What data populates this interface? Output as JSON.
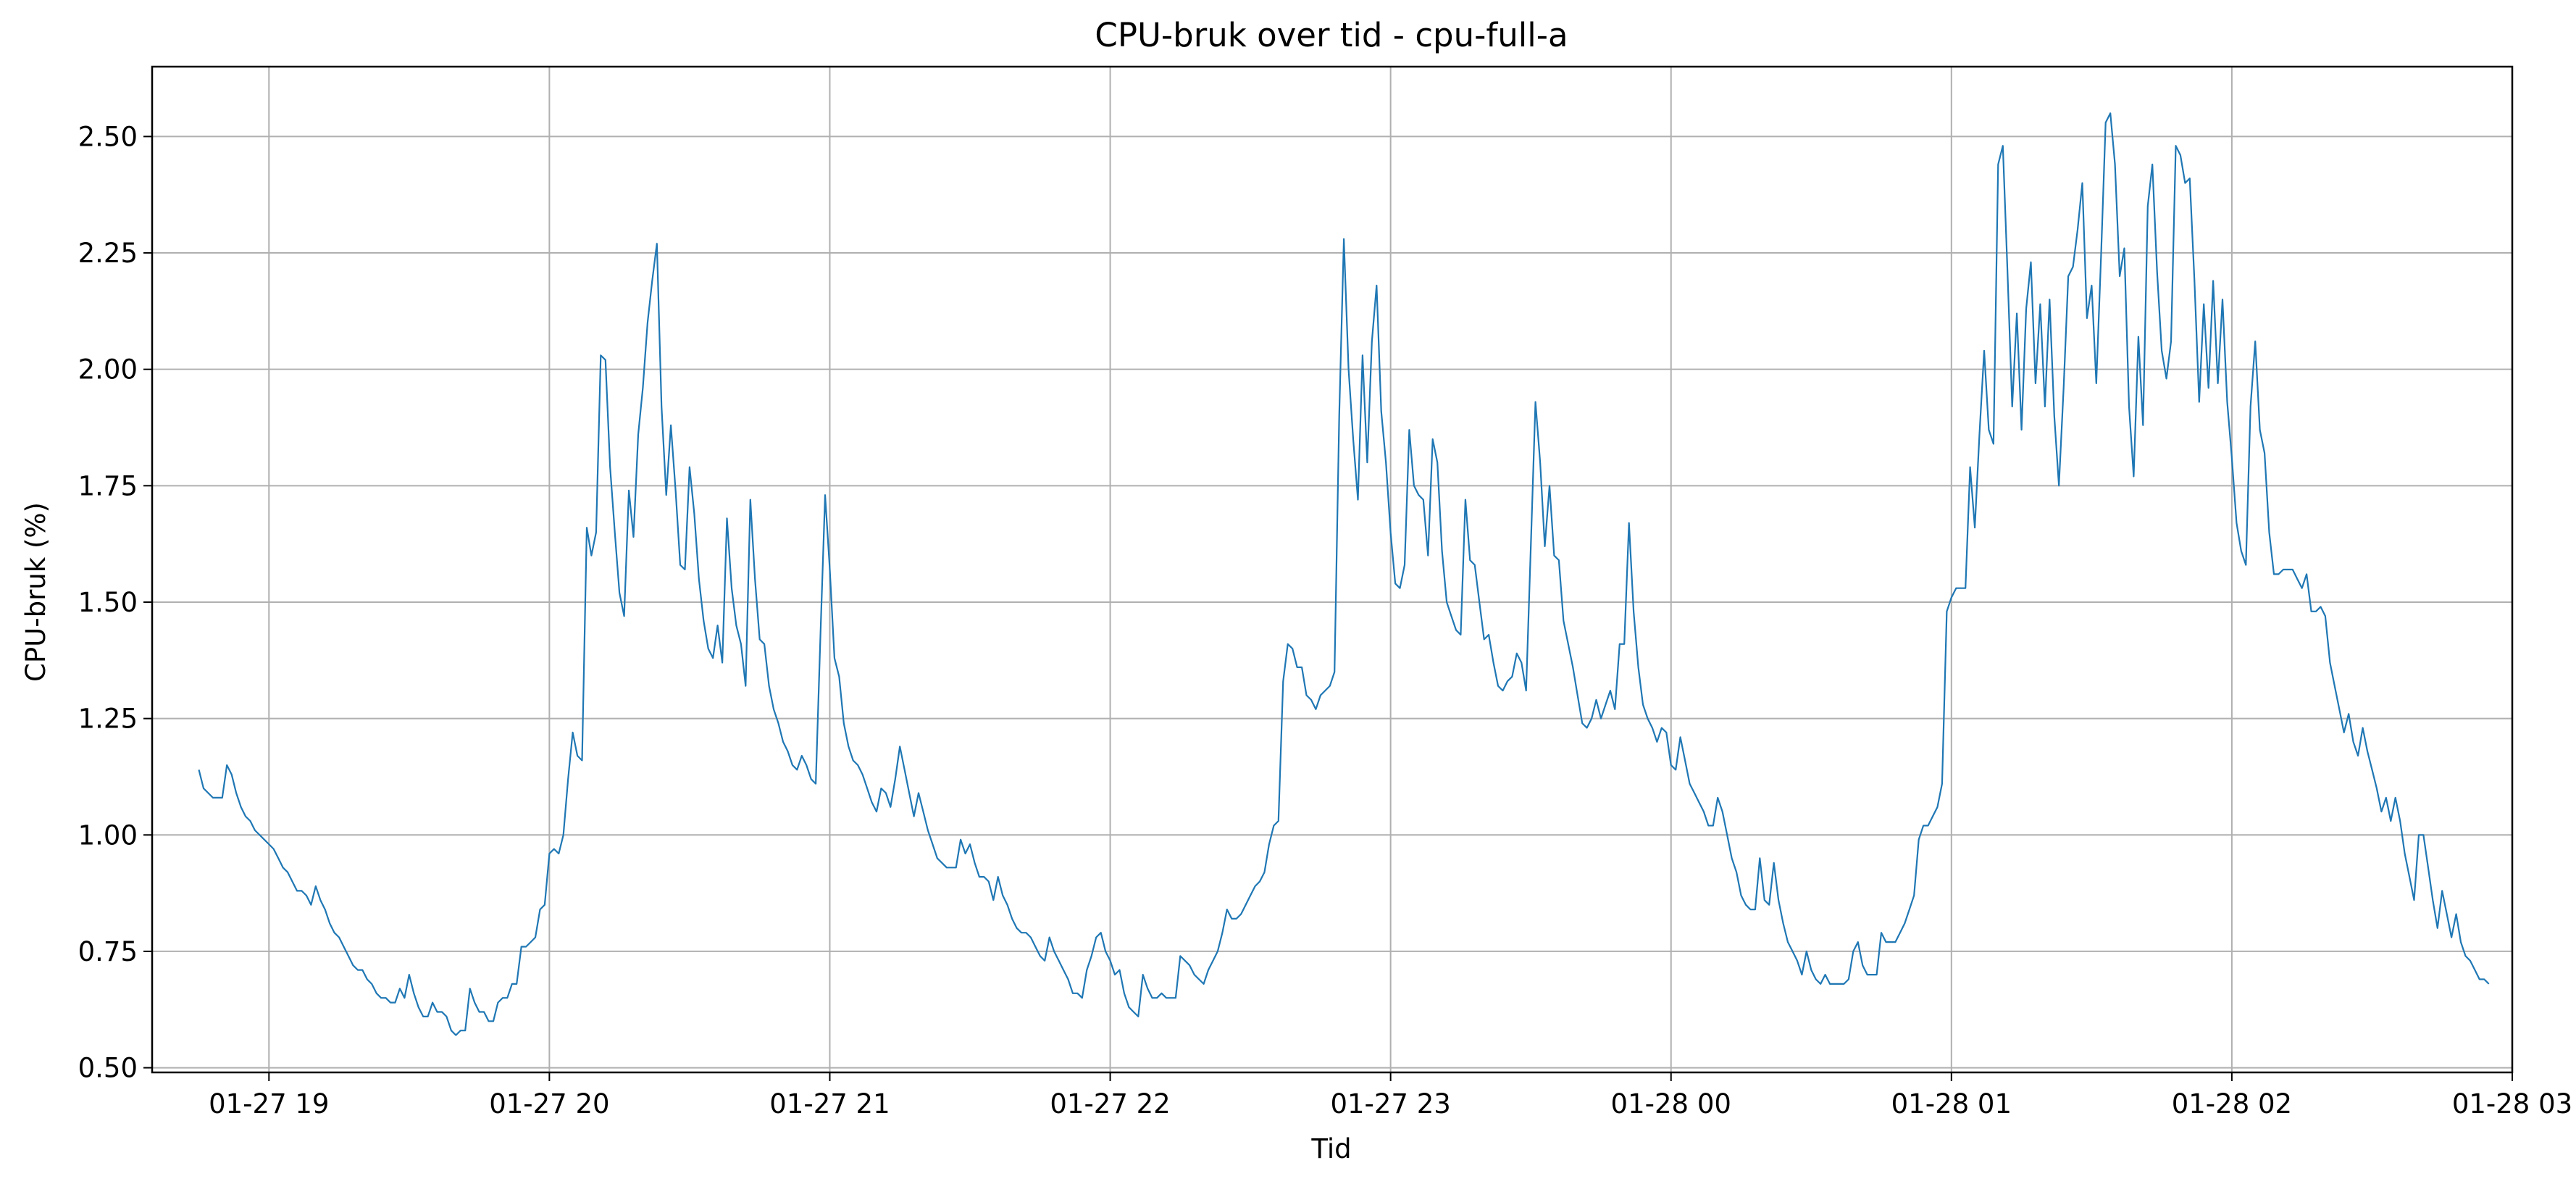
{
  "chart_data": {
    "type": "line",
    "title": "CPU-bruk over tid - cpu-full-a",
    "xlabel": "Tid",
    "ylabel": "CPU-bruk (%)",
    "xlim": [
      "2026-01-27 18:35",
      "2026-01-28 03:00"
    ],
    "ylim": [
      0.49,
      2.65
    ],
    "grid": true,
    "series_color": "#1f77b4",
    "x_ticks": [
      "01-27 19",
      "01-27 20",
      "01-27 21",
      "01-27 22",
      "01-27 23",
      "01-28 00",
      "01-28 01",
      "01-28 02",
      "01-28 03"
    ],
    "y_ticks": [
      "0.50",
      "0.75",
      "1.00",
      "1.25",
      "1.50",
      "1.75",
      "2.00",
      "2.25",
      "2.50"
    ],
    "x_start": "2026-01-27 18:45",
    "x_step_minutes": 1,
    "series": [
      {
        "values": [
          1.14,
          1.1,
          1.09,
          1.08,
          1.08,
          1.08,
          1.15,
          1.13,
          1.09,
          1.06,
          1.04,
          1.03,
          1.01,
          1.0,
          0.99,
          0.98,
          0.97,
          0.95,
          0.93,
          0.92,
          0.9,
          0.88,
          0.88,
          0.87,
          0.85,
          0.89,
          0.86,
          0.84,
          0.81,
          0.79,
          0.78,
          0.76,
          0.74,
          0.72,
          0.71,
          0.71,
          0.69,
          0.68,
          0.66,
          0.65,
          0.65,
          0.64,
          0.64,
          0.67,
          0.65,
          0.7,
          0.66,
          0.63,
          0.61,
          0.61,
          0.64,
          0.62,
          0.62,
          0.61,
          0.58,
          0.57,
          0.58,
          0.58,
          0.67,
          0.64,
          0.62,
          0.62,
          0.6,
          0.6,
          0.64,
          0.65,
          0.65,
          0.68,
          0.68,
          0.76,
          0.76,
          0.77,
          0.78,
          0.84,
          0.85,
          0.96,
          0.97,
          0.96,
          1.0,
          1.12,
          1.22,
          1.17,
          1.16,
          1.66,
          1.6,
          1.65,
          2.03,
          2.02,
          1.79,
          1.65,
          1.52,
          1.47,
          1.74,
          1.64,
          1.86,
          1.96,
          2.1,
          2.19,
          2.27,
          1.92,
          1.73,
          1.88,
          1.74,
          1.58,
          1.57,
          1.79,
          1.69,
          1.55,
          1.46,
          1.4,
          1.38,
          1.45,
          1.37,
          1.68,
          1.53,
          1.45,
          1.41,
          1.32,
          1.72,
          1.55,
          1.42,
          1.41,
          1.32,
          1.27,
          1.24,
          1.2,
          1.18,
          1.15,
          1.14,
          1.17,
          1.15,
          1.12,
          1.11,
          1.43,
          1.73,
          1.57,
          1.38,
          1.34,
          1.24,
          1.19,
          1.16,
          1.15,
          1.13,
          1.1,
          1.07,
          1.05,
          1.1,
          1.09,
          1.06,
          1.12,
          1.19,
          1.14,
          1.09,
          1.04,
          1.09,
          1.05,
          1.01,
          0.98,
          0.95,
          0.94,
          0.93,
          0.93,
          0.93,
          0.99,
          0.96,
          0.98,
          0.94,
          0.91,
          0.91,
          0.9,
          0.86,
          0.91,
          0.87,
          0.85,
          0.82,
          0.8,
          0.79,
          0.79,
          0.78,
          0.76,
          0.74,
          0.73,
          0.78,
          0.75,
          0.73,
          0.71,
          0.69,
          0.66,
          0.66,
          0.65,
          0.71,
          0.74,
          0.78,
          0.79,
          0.75,
          0.73,
          0.7,
          0.71,
          0.66,
          0.63,
          0.62,
          0.61,
          0.7,
          0.67,
          0.65,
          0.65,
          0.66,
          0.65,
          0.65,
          0.65,
          0.74,
          0.73,
          0.72,
          0.7,
          0.69,
          0.68,
          0.71,
          0.73,
          0.75,
          0.79,
          0.84,
          0.82,
          0.82,
          0.83,
          0.85,
          0.87,
          0.89,
          0.9,
          0.92,
          0.98,
          1.02,
          1.03,
          1.33,
          1.41,
          1.4,
          1.36,
          1.36,
          1.3,
          1.29,
          1.27,
          1.3,
          1.31,
          1.32,
          1.35,
          1.9,
          2.28,
          2.0,
          1.85,
          1.72,
          2.03,
          1.8,
          2.06,
          2.18,
          1.91,
          1.8,
          1.65,
          1.54,
          1.53,
          1.58,
          1.87,
          1.75,
          1.73,
          1.72,
          1.6,
          1.85,
          1.8,
          1.61,
          1.5,
          1.47,
          1.44,
          1.43,
          1.72,
          1.59,
          1.58,
          1.5,
          1.42,
          1.43,
          1.37,
          1.32,
          1.31,
          1.33,
          1.34,
          1.39,
          1.37,
          1.31,
          1.62,
          1.93,
          1.8,
          1.62,
          1.75,
          1.6,
          1.59,
          1.46,
          1.41,
          1.36,
          1.3,
          1.24,
          1.23,
          1.25,
          1.29,
          1.25,
          1.28,
          1.31,
          1.27,
          1.41,
          1.41,
          1.67,
          1.48,
          1.36,
          1.28,
          1.25,
          1.23,
          1.2,
          1.23,
          1.22,
          1.15,
          1.14,
          1.21,
          1.16,
          1.11,
          1.09,
          1.07,
          1.05,
          1.02,
          1.02,
          1.08,
          1.05,
          1.0,
          0.95,
          0.92,
          0.87,
          0.85,
          0.84,
          0.84,
          0.95,
          0.86,
          0.85,
          0.94,
          0.86,
          0.81,
          0.77,
          0.75,
          0.73,
          0.7,
          0.75,
          0.71,
          0.69,
          0.68,
          0.7,
          0.68,
          0.68,
          0.68,
          0.68,
          0.69,
          0.75,
          0.77,
          0.72,
          0.7,
          0.7,
          0.7,
          0.79,
          0.77,
          0.77,
          0.77,
          0.79,
          0.81,
          0.84,
          0.87,
          0.99,
          1.02,
          1.02,
          1.04,
          1.06,
          1.11,
          1.48,
          1.51,
          1.53,
          1.53,
          1.53,
          1.79,
          1.66,
          1.86,
          2.04,
          1.87,
          1.84,
          2.44,
          2.48,
          2.21,
          1.92,
          2.12,
          1.87,
          2.13,
          2.23,
          1.97,
          2.14,
          1.92,
          2.15,
          1.9,
          1.75,
          1.96,
          2.2,
          2.22,
          2.3,
          2.4,
          2.11,
          2.18,
          1.97,
          2.24,
          2.53,
          2.55,
          2.44,
          2.2,
          2.26,
          1.92,
          1.77,
          2.07,
          1.88,
          2.35,
          2.44,
          2.21,
          2.04,
          1.98,
          2.06,
          2.48,
          2.46,
          2.4,
          2.41,
          2.19,
          1.93,
          2.14,
          1.96,
          2.19,
          1.97,
          2.15,
          1.93,
          1.81,
          1.67,
          1.61,
          1.58,
          1.92,
          2.06,
          1.87,
          1.82,
          1.65,
          1.56,
          1.56,
          1.57,
          1.57,
          1.57,
          1.55,
          1.53,
          1.56,
          1.48,
          1.48,
          1.49,
          1.47,
          1.37,
          1.32,
          1.27,
          1.22,
          1.26,
          1.2,
          1.17,
          1.23,
          1.18,
          1.14,
          1.1,
          1.05,
          1.08,
          1.03,
          1.08,
          1.03,
          0.96,
          0.91,
          0.86,
          1.0,
          1.0,
          0.93,
          0.86,
          0.8,
          0.88,
          0.83,
          0.78,
          0.83,
          0.77,
          0.74,
          0.73,
          0.71,
          0.69,
          0.69,
          0.68
        ]
      }
    ]
  }
}
